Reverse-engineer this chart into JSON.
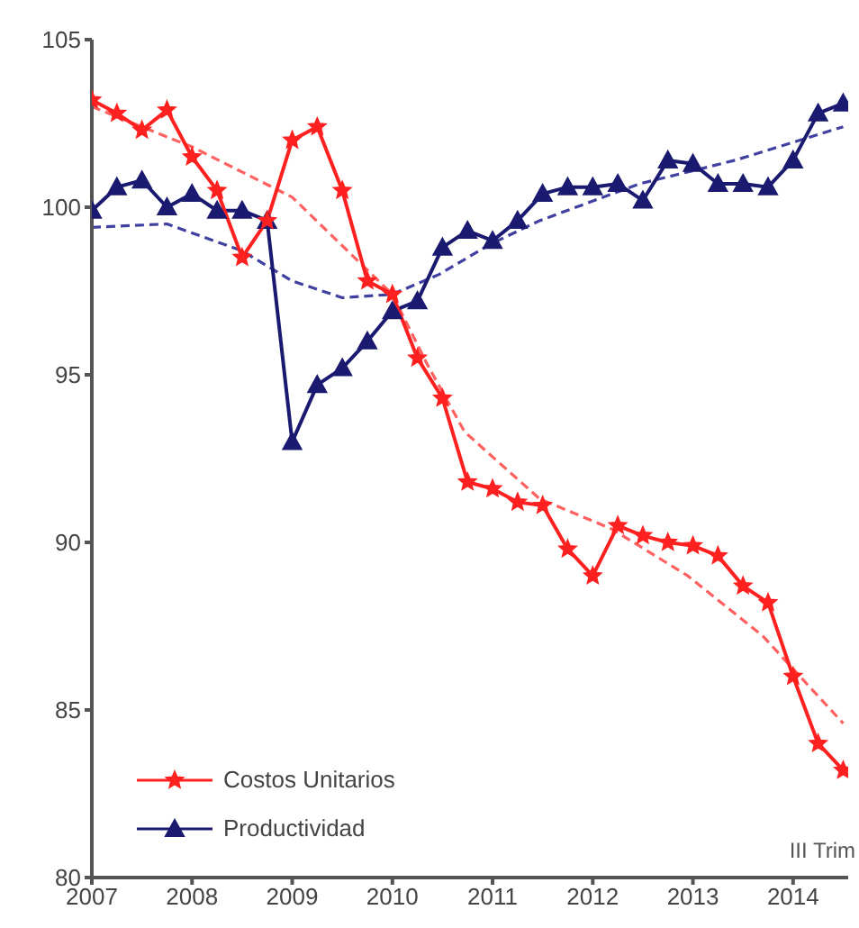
{
  "chart_data": {
    "type": "line",
    "x": [
      2007,
      2007.25,
      2007.5,
      2007.75,
      2008,
      2008.25,
      2008.5,
      2008.75,
      2009,
      2009.25,
      2009.5,
      2009.75,
      2010,
      2010.25,
      2010.5,
      2010.75,
      2011,
      2011.25,
      2011.5,
      2011.75,
      2012,
      2012.25,
      2012.5,
      2012.75,
      2013,
      2013.25,
      2013.5,
      2013.75,
      2014,
      2014.25,
      2014.5
    ],
    "series": [
      {
        "name": "Costos Unitarios",
        "color": "#ff2020",
        "marker": "star",
        "values": [
          103.2,
          102.8,
          102.3,
          102.9,
          101.5,
          100.5,
          98.5,
          99.6,
          102.0,
          102.4,
          100.5,
          97.8,
          97.4,
          95.5,
          94.3,
          91.8,
          91.6,
          91.2,
          91.1,
          89.8,
          89.0,
          90.5,
          90.2,
          90.0,
          89.9,
          89.6,
          88.7,
          88.2,
          86.0,
          84.0,
          83.2
        ]
      },
      {
        "name": "Productividad",
        "color": "#1a1a70",
        "marker": "triangle",
        "values": [
          99.9,
          100.6,
          100.8,
          100.0,
          100.4,
          99.9,
          99.9,
          99.6,
          93.0,
          94.7,
          95.2,
          96.0,
          96.9,
          97.2,
          98.8,
          99.3,
          99.0,
          99.6,
          100.4,
          100.6,
          100.6,
          100.7,
          100.2,
          101.4,
          101.3,
          100.7,
          100.7,
          100.6,
          101.4,
          102.8,
          103.1
        ]
      },
      {
        "type": "line",
        "color": "#ff6060",
        "marker": "none",
        "line_style": "dashed",
        "x": [
          2007,
          2008,
          2009,
          2010,
          2010.35,
          2010.72,
          2011.47,
          2012.19,
          2012.95,
          2013.7,
          2014.5
        ],
        "values": [
          103.0,
          101.8,
          100.3,
          97.4,
          95.3,
          93.3,
          91.3,
          90.4,
          89.0,
          87.2,
          84.6
        ]
      },
      {
        "type": "line",
        "color": "#4040a0",
        "marker": "none",
        "line_style": "dashed",
        "x": [
          2007,
          2007.75,
          2008.5,
          2009,
          2009.5,
          2010,
          2010.47,
          2010.98,
          2011.47,
          2012.47,
          2013.42,
          2014.5
        ],
        "values": [
          99.4,
          99.5,
          98.7,
          97.8,
          97.3,
          97.4,
          98.0,
          98.9,
          99.6,
          100.7,
          101.4,
          102.4
        ]
      }
    ],
    "xlim": [
      2007,
      2014.55
    ],
    "xticks": [
      2007,
      2008,
      2009,
      2010,
      2011,
      2012,
      2013,
      2014
    ],
    "ylim": [
      80,
      105
    ],
    "yticks": [
      80,
      85,
      90,
      95,
      100,
      105
    ],
    "grid": false,
    "legend": "bottom left",
    "annotations": [
      "III Trim"
    ]
  }
}
